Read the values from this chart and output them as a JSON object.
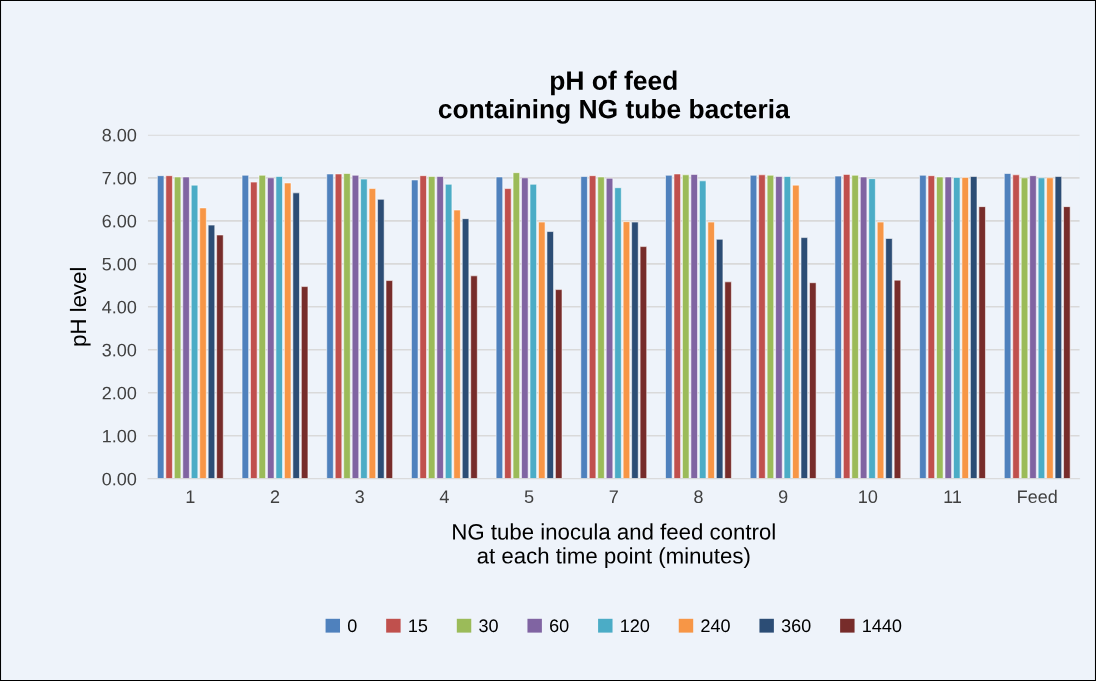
{
  "chart_data": {
    "type": "bar",
    "title": "pH of feed\ncontaining NG tube bacteria",
    "xlabel": "NG tube inocula and feed control\nat each time point (minutes)",
    "ylabel": "pH level",
    "categories": [
      "1",
      "2",
      "3",
      "4",
      "5",
      "7",
      "8",
      "9",
      "10",
      "11",
      "Feed"
    ],
    "series": [
      {
        "name": "0",
        "color": "#4f81bd",
        "values": [
          7.05,
          7.06,
          7.09,
          6.95,
          7.02,
          7.03,
          7.06,
          7.06,
          7.04,
          7.06,
          7.1
        ]
      },
      {
        "name": "15",
        "color": "#c0504d",
        "values": [
          7.05,
          6.9,
          7.09,
          7.05,
          6.75,
          7.05,
          7.09,
          7.07,
          7.08,
          7.05,
          7.07
        ]
      },
      {
        "name": "30",
        "color": "#9bbb59",
        "values": [
          7.02,
          7.06,
          7.1,
          7.03,
          7.12,
          7.02,
          7.07,
          7.06,
          7.06,
          7.02,
          7.0
        ]
      },
      {
        "name": "60",
        "color": "#8064a2",
        "values": [
          7.02,
          7.0,
          7.06,
          7.03,
          7.0,
          6.99,
          7.08,
          7.03,
          7.02,
          7.02,
          7.05
        ]
      },
      {
        "name": "120",
        "color": "#4bacc6",
        "values": [
          6.83,
          7.03,
          6.97,
          6.85,
          6.85,
          6.77,
          6.93,
          7.03,
          6.98,
          7.01,
          7.0
        ]
      },
      {
        "name": "240",
        "color": "#f79646",
        "values": [
          6.3,
          6.88,
          6.75,
          6.25,
          5.97,
          5.98,
          5.97,
          6.83,
          5.97,
          7.01,
          7.0
        ]
      },
      {
        "name": "360",
        "color": "#2c4d75",
        "values": [
          5.9,
          6.65,
          6.5,
          6.05,
          5.75,
          5.97,
          5.57,
          5.61,
          5.59,
          7.03,
          7.03
        ]
      },
      {
        "name": "1440",
        "color": "#772c2a",
        "values": [
          5.67,
          4.47,
          4.61,
          4.72,
          4.4,
          5.4,
          4.58,
          4.56,
          4.62,
          6.33,
          6.33
        ]
      }
    ],
    "ylim": [
      0,
      8
    ],
    "yticks": [
      {
        "value": 0,
        "label": "0.00"
      },
      {
        "value": 1,
        "label": "1.00"
      },
      {
        "value": 2,
        "label": "2.00"
      },
      {
        "value": 3,
        "label": "3.00"
      },
      {
        "value": 4,
        "label": "4.00"
      },
      {
        "value": 5,
        "label": "5.00"
      },
      {
        "value": 6,
        "label": "6.00"
      },
      {
        "value": 7,
        "label": "7.00"
      },
      {
        "value": 8,
        "label": "8.00"
      }
    ],
    "grid": "y",
    "legend": "bottom"
  }
}
